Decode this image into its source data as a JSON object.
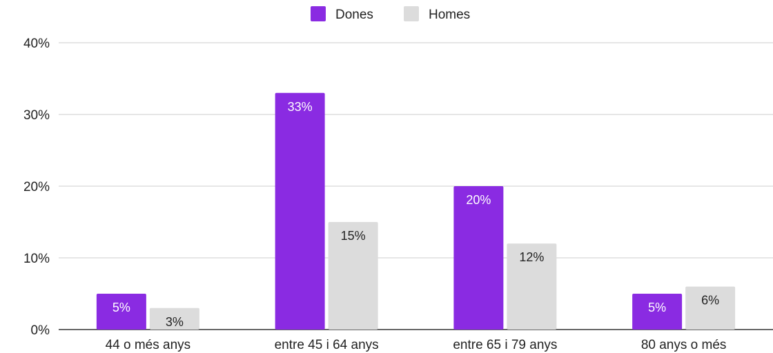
{
  "chart_data": {
    "type": "bar",
    "categories": [
      "44 o més anys",
      "entre 45 i 64 anys",
      "entre 65 i 79 anys",
      "80 anys o més"
    ],
    "series": [
      {
        "name": "Dones",
        "values": [
          5,
          33,
          20,
          5
        ],
        "labels": [
          "5%",
          "33%",
          "20%",
          "5%"
        ],
        "color": "#8a2be2",
        "label_color": "#ffffff"
      },
      {
        "name": "Homes",
        "values": [
          3,
          15,
          12,
          6
        ],
        "labels": [
          "3%",
          "15%",
          "12%",
          "6%"
        ],
        "color": "#dcdcdc",
        "label_color": "#222222"
      }
    ],
    "ylim": [
      0,
      40
    ],
    "yticks": [
      0,
      10,
      20,
      30,
      40
    ],
    "ytick_labels": [
      "0%",
      "10%",
      "20%",
      "30%",
      "40%"
    ],
    "grid": true,
    "legend_position": "top-center",
    "xlabel": "",
    "ylabel": "",
    "title": ""
  }
}
